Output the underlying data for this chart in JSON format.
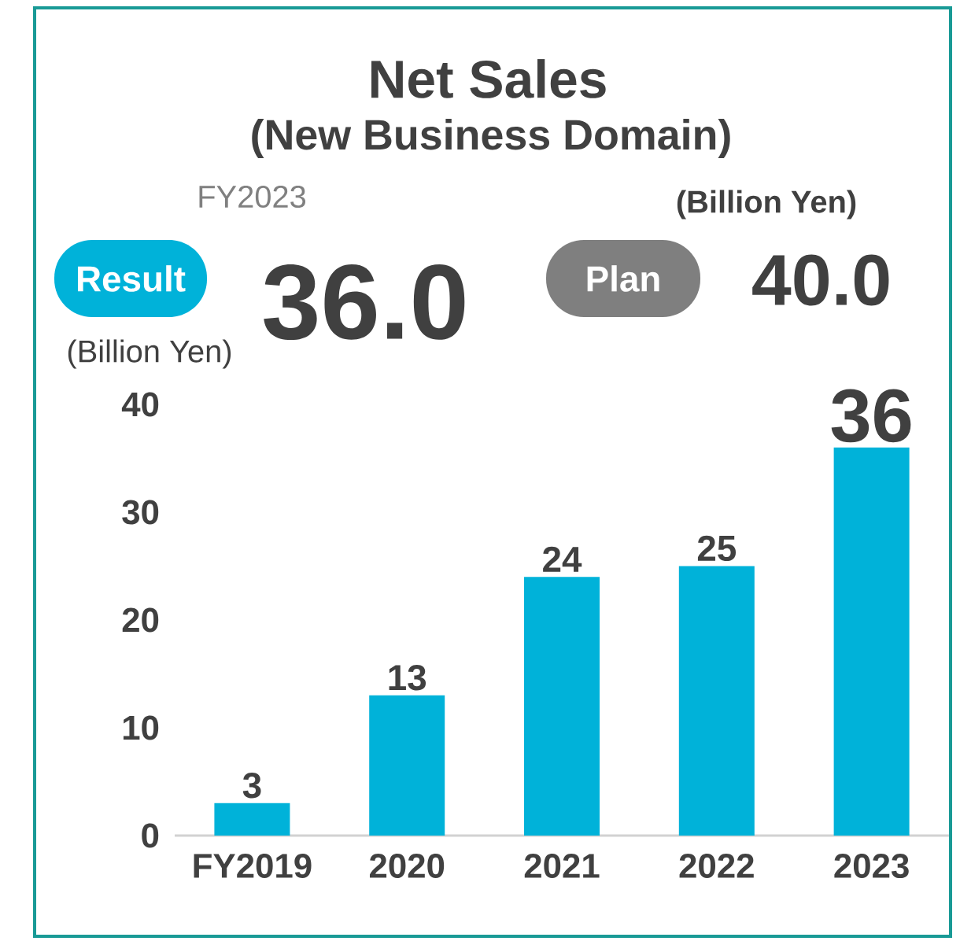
{
  "chart_data": {
    "type": "bar",
    "title": "Net Sales",
    "subtitle": "(New Business Domain)",
    "ylabel": "(Billion Yen)",
    "annotations": [
      "FY2023",
      "Result",
      "36.0",
      "Plan",
      "40.0",
      "(Billion Yen)"
    ],
    "categories": [
      "FY2019",
      "2020",
      "2021",
      "2022",
      "2023"
    ],
    "values": [
      3,
      13,
      24,
      25,
      36
    ],
    "color": "#00b2d9",
    "ylim": [
      0,
      40
    ],
    "yticks": [
      0,
      10,
      20,
      30,
      40
    ],
    "data_labels": true,
    "grid": false
  }
}
